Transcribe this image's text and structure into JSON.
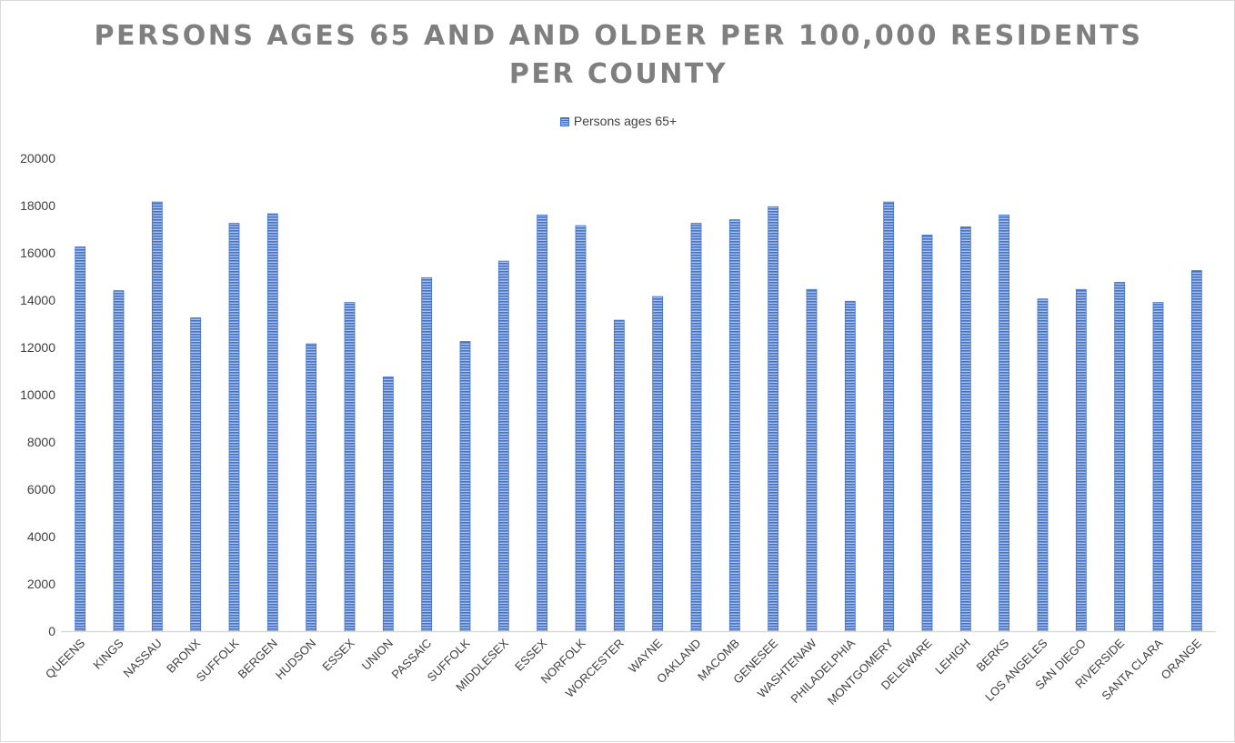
{
  "chart_data": {
    "type": "bar",
    "title": "PERSONS AGES 65 AND AND OLDER PER 100,000 RESIDENTS\nPER COUNTY",
    "xlabel": "",
    "ylabel": "",
    "ylim": [
      0,
      20000
    ],
    "yticks": [
      "0",
      "2000",
      "4000",
      "6000",
      "8000",
      "10000",
      "12000",
      "14000",
      "16000",
      "18000",
      "20000"
    ],
    "grid": false,
    "legend_position": "top",
    "categories": [
      "QUEENS",
      "KINGS",
      "NASSAU",
      "BRONX",
      "SUFFOLK",
      "BERGEN",
      "HUDSON",
      "ESSEX",
      "UNION",
      "PASSAIC",
      "SUFFOLK",
      "MIDDLESEX",
      "ESSEX",
      "NORFOLK",
      "WORCESTER",
      "WAYNE",
      "OAKLAND",
      "MACOMB",
      "GENESEE",
      "WASHTENAW",
      "PHILADELPHIA",
      "MONTGOMERY",
      "DELEWARE",
      "LEHIGH",
      "BERKS",
      "LOS ANGELES",
      "SAN DIEGO",
      "RIVERSIDE",
      "SANTA CLARA",
      "ORANGE"
    ],
    "series": [
      {
        "name": "Persons ages 65+",
        "color": "#4472c4",
        "values": [
          16250,
          14400,
          18150,
          13250,
          17250,
          17650,
          12150,
          13900,
          10750,
          14950,
          12250,
          15650,
          17600,
          17150,
          13150,
          14150,
          17250,
          17400,
          17950,
          14450,
          13950,
          18150,
          16750,
          17100,
          17600,
          14050,
          14450,
          14750,
          13900,
          15250
        ]
      }
    ]
  }
}
